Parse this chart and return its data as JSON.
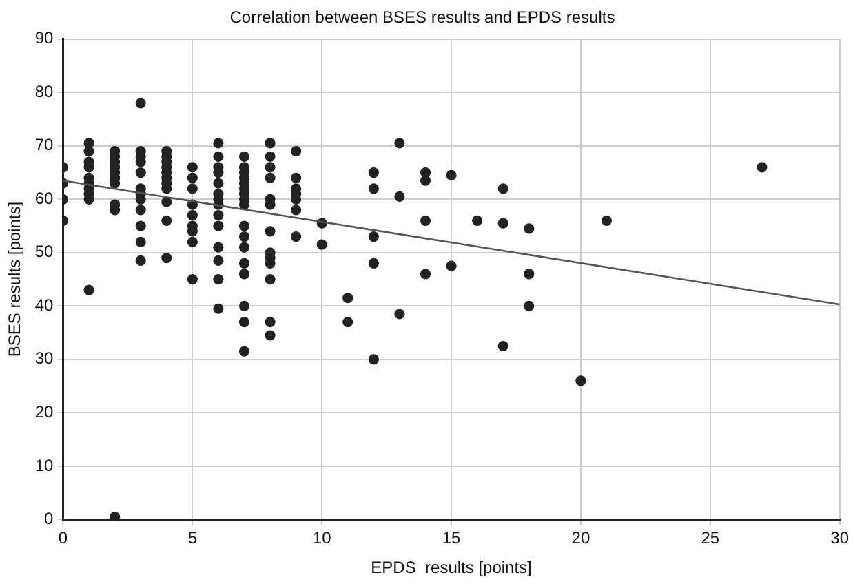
{
  "chart_data": {
    "type": "scatter",
    "title": "Correlation between BSES results and EPDS results",
    "xlabel": "EPDS  results [points]",
    "ylabel": "BSES results [points]",
    "xlim": [
      0,
      30
    ],
    "xticks": [
      0,
      5,
      10,
      15,
      20,
      25,
      30
    ],
    "ylim": [
      0,
      90
    ],
    "yticks": [
      0,
      10,
      20,
      30,
      40,
      50,
      60,
      70,
      80,
      90
    ],
    "grid": true,
    "legend": false,
    "marker": "circle",
    "series": [
      {
        "type": "scatter",
        "color": "#222222",
        "x": [
          0,
          0,
          0,
          0,
          1,
          1,
          1,
          1,
          1,
          1,
          1,
          1,
          1,
          1,
          2,
          2,
          2,
          2,
          2,
          2,
          2,
          2,
          2,
          2,
          3,
          3,
          3,
          3,
          3,
          3,
          3,
          3,
          3,
          3,
          3,
          3,
          4,
          4,
          4,
          4,
          4,
          4,
          4,
          4,
          4,
          4,
          4,
          5,
          5,
          5,
          5,
          5,
          5,
          5,
          5,
          5,
          6,
          6,
          6,
          6,
          6,
          6,
          6,
          6,
          6,
          6,
          6,
          6,
          6,
          6,
          7,
          7,
          7,
          7,
          7,
          7,
          7,
          7,
          7,
          7,
          7,
          7,
          7,
          7,
          7,
          7,
          7,
          8,
          8,
          8,
          8,
          8,
          8,
          8,
          8,
          8,
          8,
          8,
          8,
          8,
          9,
          9,
          9,
          9,
          9,
          9,
          9,
          10,
          10,
          11,
          11,
          12,
          12,
          12,
          12,
          12,
          13,
          13,
          13,
          14,
          14,
          14,
          14,
          15,
          15,
          16,
          17,
          17,
          17,
          18,
          18,
          18,
          20,
          21,
          27
        ],
        "values": [
          66,
          63,
          60,
          56,
          70.5,
          69,
          67,
          66,
          64,
          63,
          62,
          61,
          60,
          43,
          69,
          68,
          67,
          66,
          65,
          64,
          63,
          59,
          58,
          0.5,
          78,
          69,
          68,
          67,
          65,
          62,
          61,
          60,
          58,
          55,
          52,
          48.5,
          69,
          68,
          67,
          66,
          65,
          64,
          63,
          62,
          59.5,
          56,
          49,
          66,
          64,
          62,
          59,
          57,
          55,
          54,
          52,
          45,
          70.5,
          68,
          66,
          65,
          63,
          61,
          60,
          59,
          57,
          55,
          51,
          48.5,
          45,
          39.5,
          68,
          66,
          65,
          64,
          63,
          62,
          61,
          60,
          59,
          55,
          53,
          51,
          48,
          46,
          40,
          37,
          31.5,
          70.5,
          68,
          66,
          64,
          60,
          59,
          54,
          50,
          49,
          48,
          45,
          37,
          34.5,
          69,
          64,
          62,
          61,
          60,
          58,
          53,
          55.5,
          51.5,
          41.5,
          37,
          65,
          62,
          53,
          48,
          30,
          70.5,
          60.5,
          38.5,
          65,
          63.5,
          56,
          46,
          64.5,
          47.5,
          56,
          62,
          55.5,
          32.5,
          54.5,
          46,
          40,
          26,
          56,
          66
        ]
      },
      {
        "type": "line",
        "color": "#555555",
        "x": [
          0,
          30
        ],
        "values": [
          63.5,
          40.3
        ],
        "marker": "none"
      }
    ]
  }
}
